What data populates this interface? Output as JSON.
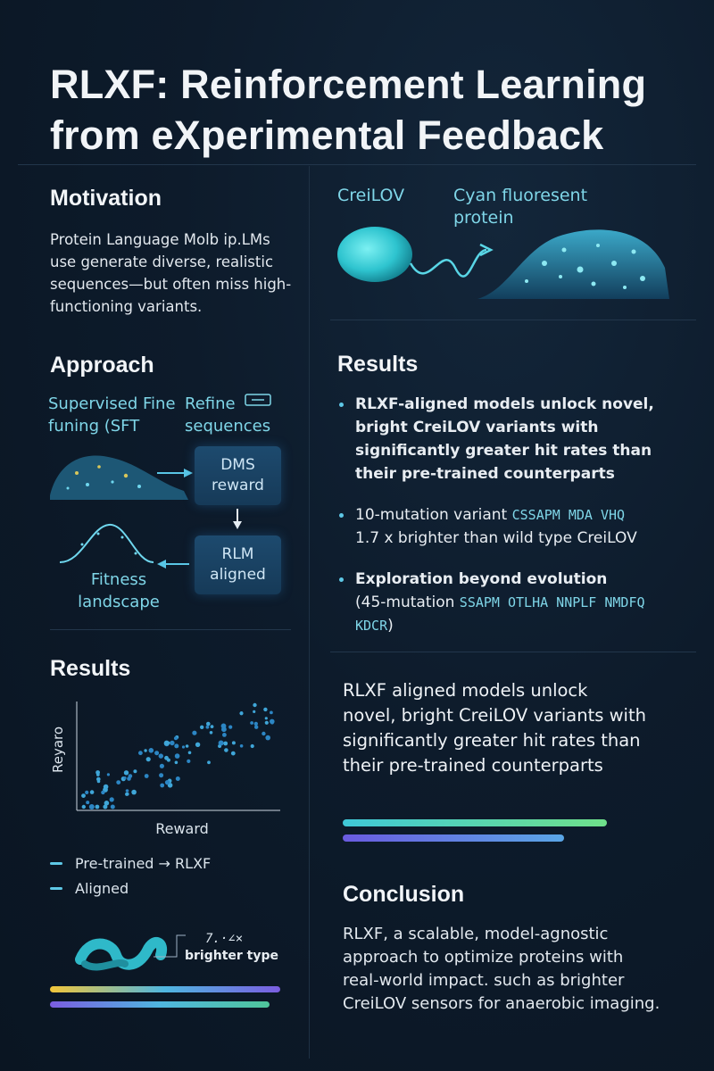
{
  "title": "RLXF: Reinforcement Learning from eXperimental Feedback",
  "motivation": {
    "heading": "Motivation",
    "text": "Protein Language Molb ip.LMs use generate diverse, realistic sequences—but often miss high-functioning variants."
  },
  "protein": {
    "label_left": "CreiLOV",
    "label_right": "Cyan fluoresent protein"
  },
  "approach": {
    "heading": "Approach",
    "sft_label": "Supervised Fine funing (SFT",
    "refine_label": "Refine sequences",
    "dms_box": "DMS reward",
    "rlm_box": "RLM aligned",
    "fitness_label": "Fitness landscape"
  },
  "results_right": {
    "heading": "Results",
    "bullets": [
      {
        "text": "RLXF-aligned models unlock novel, bright CreiLOV variants with significantly greater hit rates than their pre-trained counterparts",
        "bold": true
      },
      {
        "text": "10-mutation variant ",
        "code": "CSSAPM MDA VHQ",
        "text2": "1.7 x brighter than wild type CreiLOV",
        "bold": false
      },
      {
        "text": "Exploration beyond evolution",
        "text_cont": "(45-mutation ",
        "code": "SSAPM OTLHA NNPLF NMDFQ KDCR",
        "text_end": ")",
        "bold": false
      }
    ]
  },
  "summary_text": "RLXF aligned models unlock novel, bright CreiLOV variants with significantly greater hit rates than their pre-trained counterparts",
  "results_left": {
    "heading": "Results",
    "legend": [
      "Pre-trained → RLXF",
      "Aligned"
    ],
    "annotation_value": "7.·∠×",
    "annotation_text": "brighter type"
  },
  "chart_data": {
    "type": "scatter",
    "xlabel": "Reward",
    "ylabel": "Reyaro",
    "grid": false,
    "points_visual": "upward-trending point cloud",
    "colors": [
      "#3fa6d8",
      "#2c86c4"
    ]
  },
  "conclusion": {
    "heading": "Conclusion",
    "text": "RLXF, a scalable, model-agnostic approach to optimize proteins with real-world impact. such as brighter CreiLOV sensors for anaerobic imaging."
  },
  "colors": {
    "background": "#0d1b2b",
    "accent_cyan": "#5ec8e6",
    "accent_green": "#6fe08a",
    "accent_purple": "#7b5de0",
    "accent_yellow": "#f2c63a"
  }
}
